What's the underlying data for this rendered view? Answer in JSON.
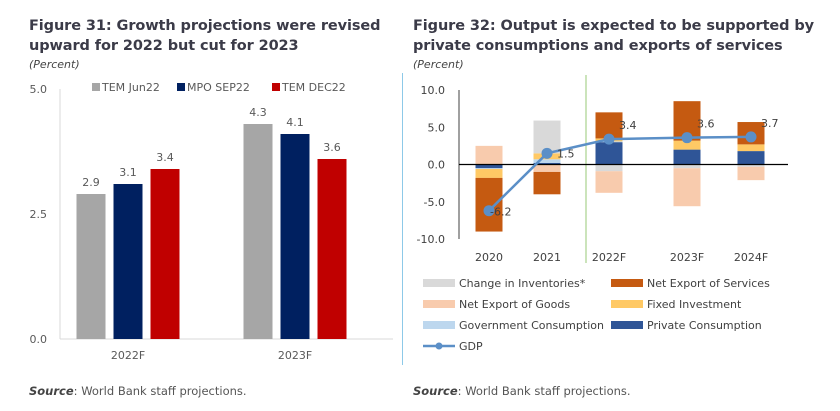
{
  "figures": {
    "left": {
      "title_line1": "Figure 31: Growth projections were revised",
      "title_line2": "upward for 2022 but cut for 2023",
      "unit": "(Percent)",
      "source_label": "Source",
      "source_text": ": World Bank staff projections."
    },
    "right": {
      "title_line1": "Figure 32: Output is expected to be supported by",
      "title_line2": "private consumptions and exports of services",
      "unit": "(Percent)",
      "source_label": "Source",
      "source_text": ": World Bank staff projections."
    }
  },
  "chart_data": [
    {
      "type": "bar",
      "title": "Figure 31: Growth projections were revised upward for 2022 but cut for 2023",
      "ylabel": "(Percent)",
      "xlabel": "",
      "categories": [
        "2022F",
        "2023F"
      ],
      "series": [
        {
          "name": "TEM Jun22",
          "color": "#a6a6a6",
          "values": [
            2.9,
            4.3
          ]
        },
        {
          "name": "MPO SEP22",
          "color": "#002060",
          "values": [
            3.1,
            4.1
          ]
        },
        {
          "name": "TEM DEC22",
          "color": "#c00000",
          "values": [
            3.4,
            3.6
          ]
        }
      ],
      "data_labels": [
        [
          "2.9",
          "4.3"
        ],
        [
          "3.1",
          "4.1"
        ],
        [
          "3.4",
          "3.6"
        ]
      ],
      "ylim": [
        0,
        5
      ],
      "yticks": [
        "0.0",
        "2.5",
        "5.0"
      ],
      "legend": "top",
      "grid": false
    },
    {
      "type": "bar",
      "stacked": true,
      "title": "Figure 32: Output is expected to be supported by private consumptions and exports of services",
      "ylabel": "(Percent)",
      "xlabel": "",
      "categories": [
        "2020",
        "2021",
        "2022F",
        "2023F",
        "2024F"
      ],
      "series": [
        {
          "name": "Private Consumption",
          "color": "#2f5597",
          "values": [
            -0.5,
            0.2,
            3.0,
            2.0,
            1.8
          ]
        },
        {
          "name": "Government Consumption",
          "color": "#bdd7ee",
          "values": [
            -0.1,
            0.5,
            0.1,
            0.0,
            0.0
          ]
        },
        {
          "name": "Fixed Investment",
          "color": "#ffc965",
          "values": [
            -1.2,
            0.8,
            0.4,
            1.2,
            0.9
          ]
        },
        {
          "name": "Change in Inventories*",
          "color": "#d9d9d9",
          "values": [
            0.0,
            4.4,
            -0.9,
            -0.5,
            -0.3
          ]
        },
        {
          "name": "Net Export of Goods",
          "color": "#f8cbad",
          "values": [
            2.5,
            -1.0,
            -2.9,
            -5.1,
            -1.8
          ]
        },
        {
          "name": "Net Export of Services",
          "color": "#c55a11",
          "values": [
            -7.2,
            -3.0,
            3.5,
            5.3,
            3.0
          ]
        }
      ],
      "line_series": {
        "name": "GDP",
        "color": "#5b8fc7",
        "values": [
          -6.2,
          1.5,
          3.4,
          3.6,
          3.7
        ]
      },
      "data_labels": [
        "-6.2",
        "1.5",
        "3.4",
        "3.6",
        "3.7"
      ],
      "ylim": [
        -10,
        10
      ],
      "yticks": [
        "-10.0",
        "-5.0",
        "0.0",
        "5.0",
        "10.0"
      ],
      "forecast_divider_after": "2021",
      "legend": "bottom",
      "legend_order": [
        "Change in Inventories*",
        "Net Export of Services",
        "Net Export of Goods",
        "Fixed Investment",
        "Government Consumption",
        "Private Consumption",
        "GDP"
      ],
      "grid": false
    }
  ]
}
